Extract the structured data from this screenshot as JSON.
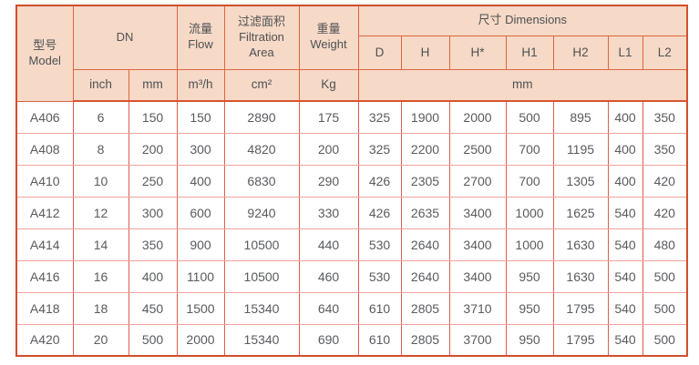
{
  "table": {
    "header": {
      "model": "型号\nModel",
      "dn": "DN",
      "flow": "流量\nFlow",
      "filtration_area": "过滤面积\nFiltration\nArea",
      "weight": "重量\nWeight",
      "dimensions": "尺寸 Dimensions",
      "dim_cols": [
        "D",
        "H",
        "H*",
        "H1",
        "H2",
        "L1",
        "L2"
      ],
      "units": {
        "inch": "inch",
        "mm": "mm",
        "flow": "m³/h",
        "area": "cm²",
        "weight": "Kg",
        "dims": "mm"
      }
    },
    "rows": [
      {
        "model": "A406",
        "values": [
          "6",
          "150",
          "150",
          "2890",
          "175",
          "325",
          "1900",
          "2000",
          "500",
          "895",
          "400",
          "350"
        ]
      },
      {
        "model": "A408",
        "values": [
          "8",
          "200",
          "300",
          "4820",
          "200",
          "325",
          "2200",
          "2500",
          "700",
          "1195",
          "400",
          "350"
        ]
      },
      {
        "model": "A410",
        "values": [
          "10",
          "250",
          "400",
          "6830",
          "290",
          "426",
          "2305",
          "2700",
          "700",
          "1305",
          "400",
          "420"
        ]
      },
      {
        "model": "A412",
        "values": [
          "12",
          "300",
          "600",
          "9240",
          "330",
          "426",
          "2635",
          "3400",
          "1000",
          "1625",
          "540",
          "420"
        ]
      },
      {
        "model": "A414",
        "values": [
          "14",
          "350",
          "900",
          "10500",
          "440",
          "530",
          "2640",
          "3400",
          "1000",
          "1630",
          "540",
          "480"
        ]
      },
      {
        "model": "A416",
        "values": [
          "16",
          "400",
          "1100",
          "10500",
          "460",
          "530",
          "2640",
          "3400",
          "950",
          "1630",
          "540",
          "500"
        ]
      },
      {
        "model": "A418",
        "values": [
          "18",
          "450",
          "1500",
          "15340",
          "640",
          "610",
          "2805",
          "3710",
          "950",
          "1795",
          "540",
          "500"
        ]
      },
      {
        "model": "A420",
        "values": [
          "20",
          "500",
          "2000",
          "15340",
          "690",
          "610",
          "2805",
          "3700",
          "950",
          "1795",
          "540",
          "500"
        ]
      }
    ]
  },
  "colors": {
    "header_bg": "#f6d9c6",
    "header_border": "#dc6640",
    "outer_border": "#d24f2a",
    "divider": "#d8532d",
    "grid_v": "#e05b4e",
    "grid_h": "#efa49c",
    "header_text": "#4e5154",
    "data_text": "#595b5e",
    "page_bg": "#ffffff"
  }
}
